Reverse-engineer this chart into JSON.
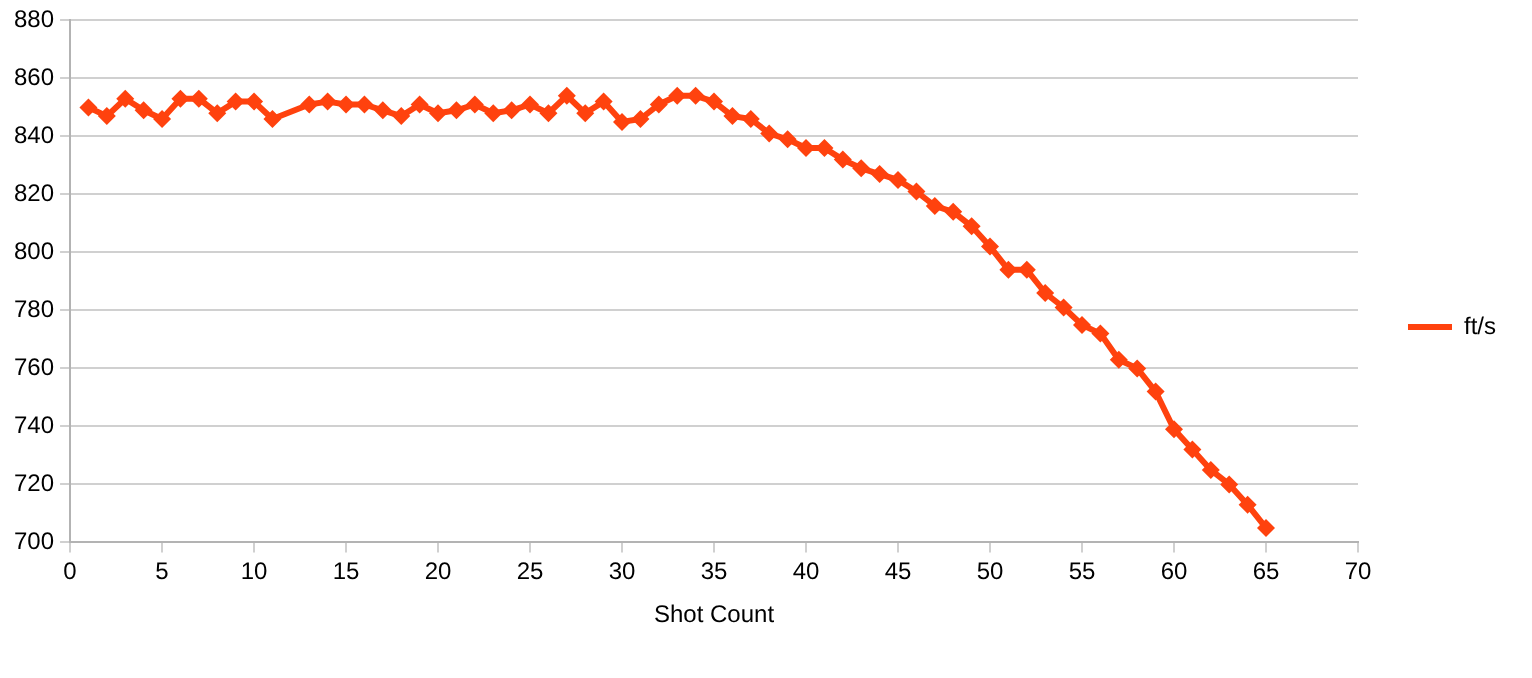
{
  "chart_data": {
    "type": "line",
    "xlabel": "Shot Count",
    "x": [
      1,
      2,
      3,
      4,
      5,
      6,
      7,
      8,
      9,
      10,
      11,
      13,
      14,
      15,
      16,
      17,
      18,
      19,
      20,
      21,
      22,
      23,
      24,
      25,
      26,
      27,
      28,
      29,
      30,
      31,
      32,
      33,
      34,
      35,
      36,
      37,
      38,
      39,
      40,
      41,
      42,
      43,
      44,
      45,
      46,
      47,
      48,
      49,
      50,
      51,
      52,
      53,
      54,
      55,
      56,
      57,
      58,
      59,
      60,
      61,
      62,
      63,
      64,
      65
    ],
    "series": [
      {
        "name": "ft/s",
        "color": "#ff420e",
        "values": [
          850,
          847,
          853,
          849,
          846,
          853,
          853,
          848,
          852,
          852,
          846,
          851,
          852,
          851,
          851,
          849,
          847,
          851,
          848,
          849,
          851,
          848,
          849,
          851,
          848,
          854,
          848,
          852,
          845,
          846,
          851,
          854,
          854,
          852,
          847,
          846,
          841,
          839,
          836,
          836,
          832,
          829,
          827,
          825,
          821,
          816,
          814,
          809,
          802,
          794,
          794,
          786,
          781,
          775,
          772,
          763,
          760,
          752,
          739,
          732,
          725,
          720,
          713,
          705
        ]
      }
    ],
    "xlim": [
      0,
      70
    ],
    "xticks": [
      0,
      5,
      10,
      15,
      20,
      25,
      30,
      35,
      40,
      45,
      50,
      55,
      60,
      65,
      70
    ],
    "ylim": [
      700,
      880
    ],
    "yticks": [
      700,
      720,
      740,
      760,
      780,
      800,
      820,
      840,
      860,
      880
    ],
    "grid": "y",
    "legend": "right",
    "marker": "diamond",
    "line_style": "solid"
  }
}
